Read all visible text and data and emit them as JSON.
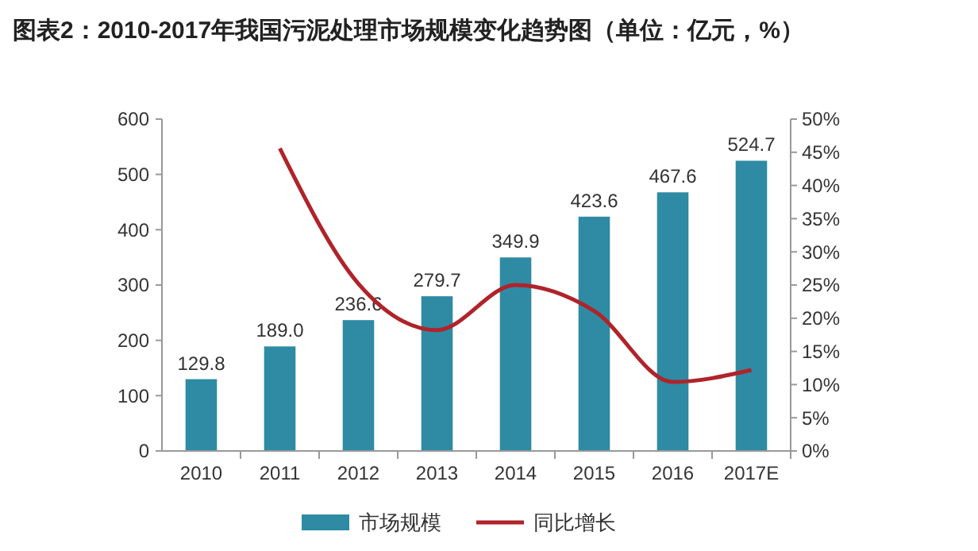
{
  "chart_data": {
    "type": "bar",
    "title": "图表2：2010-2017年我国污泥处理市场规模变化趋势图（单位：亿元，%）",
    "categories": [
      "2010",
      "2011",
      "2012",
      "2013",
      "2014",
      "2015",
      "2016",
      "2017E"
    ],
    "series": [
      {
        "name": "市场规模",
        "color": "#2e8ba3",
        "values": [
          129.8,
          189.0,
          236.6,
          279.7,
          349.9,
          423.6,
          467.6,
          524.7
        ],
        "value_labels": [
          "129.8",
          "189.0",
          "236.6",
          "279.7",
          "349.9",
          "423.6",
          "467.6",
          "524.7"
        ]
      },
      {
        "name": "同比增长",
        "type": "line",
        "axis": "y2",
        "color": "#b0232a",
        "values": [
          null,
          45.6,
          25.2,
          18.2,
          25.0,
          21.1,
          10.4,
          12.2
        ]
      }
    ],
    "ylim": [
      0,
      600
    ],
    "yticks": [
      0,
      100,
      200,
      300,
      400,
      500,
      600
    ],
    "y2lim": [
      0,
      50
    ],
    "y2ticks": [
      {
        "value": 0,
        "label": "0%"
      },
      {
        "value": 5,
        "label": "5%"
      },
      {
        "value": 10,
        "label": "10%"
      },
      {
        "value": 15,
        "label": "15%"
      },
      {
        "value": 20,
        "label": "20%"
      },
      {
        "value": 25,
        "label": "25%"
      },
      {
        "value": 30,
        "label": "30%"
      },
      {
        "value": 35,
        "label": "35%"
      },
      {
        "value": 40,
        "label": "40%"
      },
      {
        "value": 45,
        "label": "45%"
      },
      {
        "value": 50,
        "label": "50%"
      }
    ],
    "legend": "bottom",
    "grid": false,
    "marker": "none",
    "line_style": "solid"
  }
}
